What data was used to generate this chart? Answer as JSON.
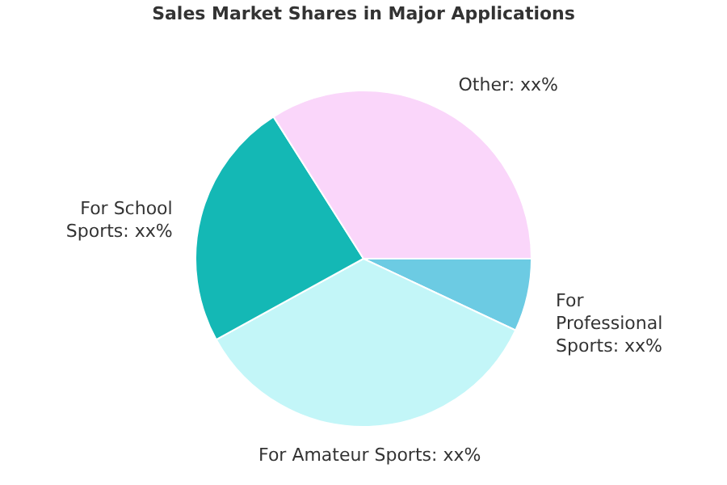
{
  "chart_data": {
    "type": "pie",
    "title": "Sales Market Shares in Major Applications",
    "categories": [
      "For Professional Sports",
      "For Amateur Sports",
      "For School Sports",
      "Other"
    ],
    "values": [
      7,
      35,
      24,
      34
    ],
    "value_labels": [
      "xx%",
      "xx%",
      "xx%",
      "xx%"
    ],
    "colors": [
      "#6ccbe3",
      "#c3f6f8",
      "#14b8b5",
      "#fad6fa"
    ]
  }
}
